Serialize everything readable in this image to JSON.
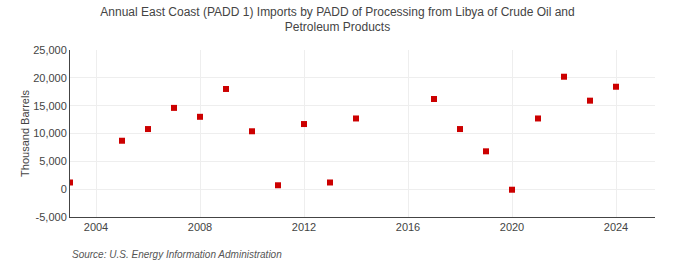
{
  "chart_data": {
    "type": "scatter",
    "title": "Annual East Coast (PADD 1) Imports by PADD of Processing from Libya of Crude Oil and\nPetroleum Products",
    "ylabel": "Thousand Barrels",
    "annotations": [
      "Source: U.S. Energy Information Administration"
    ],
    "x": [
      2003,
      2005,
      2006,
      2007,
      2008,
      2009,
      2010,
      2011,
      2012,
      2013,
      2014,
      2017,
      2018,
      2019,
      2020,
      2021,
      2022,
      2023,
      2024
    ],
    "values": [
      1200,
      8700,
      10800,
      14600,
      13000,
      18000,
      10400,
      700,
      11700,
      1200,
      12700,
      16200,
      10800,
      6800,
      -100,
      12700,
      20200,
      15900,
      18400
    ],
    "color": "#cc0000",
    "marker": "square",
    "xlim": [
      2003,
      2025.5
    ],
    "xticks": [
      2004,
      2008,
      2012,
      2016,
      2020,
      2024
    ],
    "ylim": [
      -5000,
      25000
    ],
    "yticks": [
      {
        "value": -5000,
        "label": "-5,000"
      },
      0,
      {
        "value": 5000,
        "label": "5,000"
      },
      {
        "value": 10000,
        "label": "10,000"
      },
      {
        "value": 15000,
        "label": "15,000"
      },
      {
        "value": 20000,
        "label": "20,000"
      },
      {
        "value": 25000,
        "label": "25,000"
      }
    ],
    "grid": true
  }
}
